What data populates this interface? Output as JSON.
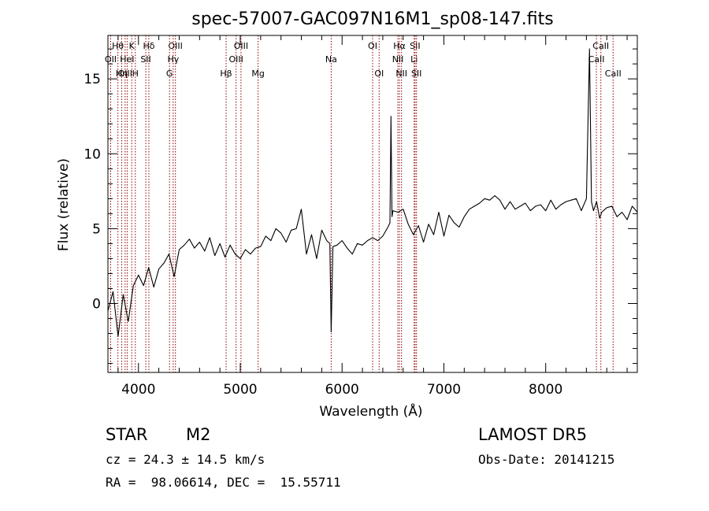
{
  "chart_data": {
    "type": "line",
    "title": "spec-57007-GAC097N16M1_sp08-147.fits",
    "xlabel": "Wavelength (Å)",
    "ylabel": "Flux (relative)",
    "xlim": [
      3700,
      8900
    ],
    "ylim": [
      -4.6,
      17.9
    ],
    "xticks": [
      4000,
      5000,
      6000,
      7000,
      8000
    ],
    "yticks": [
      0,
      5,
      10,
      15
    ],
    "line_color": "#000000",
    "marker_color": "#8b0000",
    "grid": false,
    "series": [
      {
        "x": [
          3700,
          3750,
          3800,
          3850,
          3900,
          3950,
          4000,
          4050,
          4100,
          4150,
          4200,
          4250,
          4300,
          4350,
          4400,
          4450,
          4500,
          4550,
          4600,
          4650,
          4700,
          4750,
          4800,
          4850,
          4900,
          4950,
          5000,
          5050,
          5100,
          5150,
          5200,
          5250,
          5300,
          5350,
          5400,
          5450,
          5500,
          5550,
          5600,
          5650,
          5700,
          5750,
          5800,
          5850,
          5880,
          5893,
          5910,
          5950,
          6000,
          6050,
          6100,
          6150,
          6200,
          6250,
          6300,
          6350,
          6400,
          6450,
          6470,
          6480,
          6490,
          6500,
          6550,
          6600,
          6650,
          6700,
          6750,
          6800,
          6850,
          6900,
          6950,
          7000,
          7050,
          7100,
          7150,
          7200,
          7250,
          7300,
          7350,
          7400,
          7450,
          7500,
          7550,
          7600,
          7650,
          7700,
          7750,
          7800,
          7850,
          7900,
          7950,
          8000,
          8050,
          8100,
          8150,
          8200,
          8250,
          8300,
          8350,
          8400,
          8430,
          8450,
          8470,
          8500,
          8530,
          8550,
          8600,
          8650,
          8700,
          8750,
          8800,
          8850,
          8900
        ],
        "y": [
          -0.5,
          0.8,
          -2.2,
          0.6,
          -1.2,
          1.2,
          1.9,
          1.2,
          2.4,
          1.1,
          2.3,
          2.7,
          3.3,
          1.8,
          3.6,
          3.9,
          4.3,
          3.7,
          4.1,
          3.5,
          4.4,
          3.2,
          4.0,
          3.1,
          3.9,
          3.3,
          3.0,
          3.6,
          3.3,
          3.7,
          3.8,
          4.5,
          4.2,
          5.0,
          4.7,
          4.1,
          4.9,
          5.0,
          6.3,
          3.3,
          4.6,
          3.0,
          4.9,
          4.2,
          4.0,
          -1.9,
          3.8,
          3.9,
          4.2,
          3.7,
          3.3,
          4.0,
          3.9,
          4.2,
          4.4,
          4.2,
          4.5,
          5.1,
          5.4,
          12.5,
          5.8,
          6.2,
          6.1,
          6.3,
          5.3,
          4.6,
          5.2,
          4.1,
          5.3,
          4.6,
          6.1,
          4.5,
          5.9,
          5.4,
          5.1,
          5.8,
          6.3,
          6.5,
          6.7,
          7.0,
          6.9,
          7.2,
          6.9,
          6.3,
          6.8,
          6.3,
          6.5,
          6.7,
          6.2,
          6.5,
          6.6,
          6.2,
          6.9,
          6.3,
          6.6,
          6.8,
          6.9,
          7.0,
          6.2,
          7.0,
          17.0,
          6.8,
          6.2,
          6.8,
          5.7,
          6.1,
          6.4,
          6.5,
          5.8,
          6.1,
          5.6,
          6.5,
          6.1
        ]
      }
    ],
    "line_marks": [
      {
        "label": "Hθ",
        "x": 3798,
        "row": 1,
        "color": "#8b0000"
      },
      {
        "label": "OII",
        "x": 3727,
        "row": 2,
        "color": "#8b0000"
      },
      {
        "label": "OIII",
        "x": 3869,
        "row": 3,
        "color": "#8b0000"
      },
      {
        "label": "Hη",
        "x": 3835,
        "row": 3,
        "color": "#8b0000"
      },
      {
        "label": "HeI",
        "x": 3889,
        "row": 2,
        "color": "#8b0000"
      },
      {
        "label": "K",
        "x": 3934,
        "row": 1,
        "color": "#8b0000"
      },
      {
        "label": "H",
        "x": 3969,
        "row": 3,
        "color": "#8b0000"
      },
      {
        "label": "Hδ",
        "x": 4102,
        "row": 1,
        "color": "#8b0000"
      },
      {
        "label": "SII",
        "x": 4072,
        "row": 2,
        "color": "#8b0000"
      },
      {
        "label": "OIII",
        "x": 4363,
        "row": 1,
        "color": "#8b0000"
      },
      {
        "label": "Hγ",
        "x": 4341,
        "row": 2,
        "color": "#8b0000"
      },
      {
        "label": "G",
        "x": 4305,
        "row": 3,
        "color": "#8b0000"
      },
      {
        "label": "OIII",
        "x": 5007,
        "row": 1,
        "color": "#8b0000"
      },
      {
        "label": "OIII",
        "x": 4959,
        "row": 2,
        "color": "#8b0000"
      },
      {
        "label": "Hβ",
        "x": 4861,
        "row": 3,
        "color": "#8b0000"
      },
      {
        "label": "Mg",
        "x": 5175,
        "row": 3,
        "color": "#8b0000"
      },
      {
        "label": "Na",
        "x": 5893,
        "row": 2,
        "color": "#8b0000"
      },
      {
        "label": "OI",
        "x": 6300,
        "row": 1,
        "color": "#8b0000"
      },
      {
        "label": "OI",
        "x": 6364,
        "row": 3,
        "color": "#8b0000"
      },
      {
        "label": "Hα",
        "x": 6563,
        "row": 1,
        "color": "#8b0000"
      },
      {
        "label": "NII",
        "x": 6548,
        "row": 2,
        "color": "#8b0000"
      },
      {
        "label": "NII",
        "x": 6584,
        "row": 3,
        "color": "#8b0000"
      },
      {
        "label": "SII",
        "x": 6717,
        "row": 1,
        "color": "#8b0000"
      },
      {
        "label": "Li",
        "x": 6708,
        "row": 2,
        "color": "#8b0000"
      },
      {
        "label": "SII",
        "x": 6731,
        "row": 3,
        "color": "#8b0000"
      },
      {
        "label": "CaII",
        "x": 8542,
        "row": 1,
        "color": "#8b0000"
      },
      {
        "label": "CaII",
        "x": 8498,
        "row": 2,
        "color": "#8b0000"
      },
      {
        "label": "CaII",
        "x": 8662,
        "row": 3,
        "color": "#8b0000"
      }
    ]
  },
  "info": {
    "class_label": "STAR",
    "subclass": "M2",
    "survey": "LAMOST DR5",
    "redshift": "cz = 24.3 ± 14.5 km/s",
    "obs_date": "Obs-Date: 20141215",
    "coords": "RA =  98.06614, DEC =  15.55711"
  }
}
